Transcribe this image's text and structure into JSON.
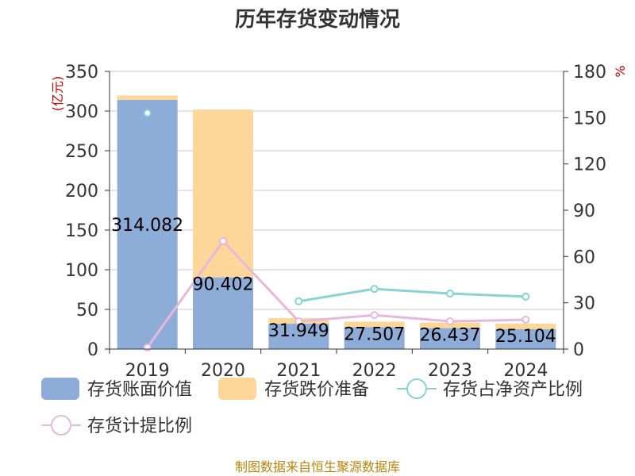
{
  "chart_data": {
    "type": "bar",
    "title": "历年存货变动情况",
    "categories": [
      "2019",
      "2020",
      "2021",
      "2022",
      "2023",
      "2024"
    ],
    "y_left": {
      "unit": "(亿元)",
      "ylim": [
        0,
        350
      ],
      "ticks": [
        0,
        50,
        100,
        150,
        200,
        250,
        300,
        350
      ]
    },
    "y_right": {
      "unit": "%",
      "ylim": [
        0,
        180
      ],
      "ticks": [
        0,
        30,
        60,
        90,
        120,
        150,
        180
      ]
    },
    "series": [
      {
        "name": "存货账面价值",
        "kind": "bar",
        "axis": "left",
        "color": "#8eacd8",
        "values": [
          314.082,
          90.402,
          31.949,
          27.507,
          26.437,
          25.104
        ],
        "labels": [
          "314.082",
          "90.402",
          "31.949",
          "27.507",
          "26.437",
          "25.104"
        ]
      },
      {
        "name": "存货跌价准备",
        "kind": "bar",
        "axis": "left",
        "color": "#fdd799",
        "values": [
          5.5,
          211.5,
          7.0,
          7.0,
          7.0,
          7.0
        ]
      },
      {
        "name": "存货占净资产比例",
        "kind": "line",
        "axis": "right",
        "color": "#88d3d3",
        "values": [
          153,
          null,
          31,
          39,
          36,
          34
        ]
      },
      {
        "name": "存货计提比例",
        "kind": "line",
        "axis": "right",
        "color": "#e6b8dc",
        "values": [
          1,
          70,
          18,
          22,
          18,
          19
        ]
      }
    ],
    "grid": true,
    "legend_position": "bottom"
  },
  "source_note": "制图数据来自恒生聚源数据库"
}
